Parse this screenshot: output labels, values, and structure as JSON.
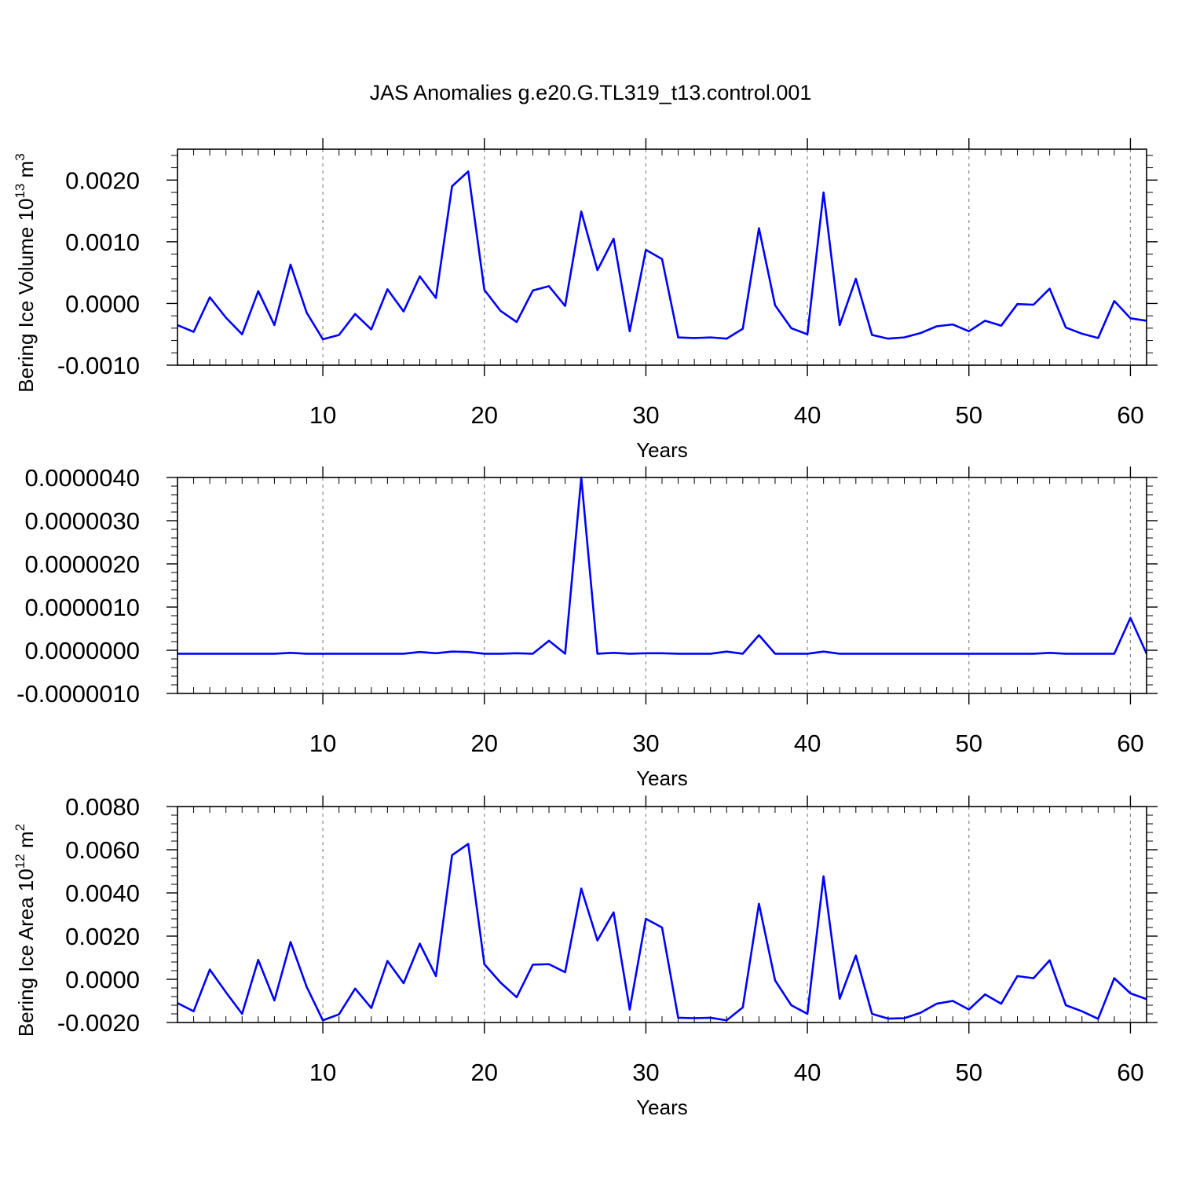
{
  "figure": {
    "title": "JAS Anomalies g.e20.G.TL319_t13.control.001",
    "line_color": "#0000ff"
  },
  "chart_data": [
    {
      "type": "line",
      "xlabel": "Years",
      "ylabel": "Bering Ice Volume 10",
      "ylabel_exp": "13",
      "ylabel_unit": " m",
      "ylabel_unit_exp": "3",
      "xlim": [
        1,
        61
      ],
      "ylim": [
        -0.001,
        0.0025
      ],
      "x_ticks": [
        10,
        20,
        30,
        40,
        50,
        60
      ],
      "x_tick_labels": [
        "10",
        "20",
        "30",
        "40",
        "50",
        "60"
      ],
      "y_ticks": [
        -0.001,
        0,
        0.001,
        0.002
      ],
      "y_tick_labels": [
        "-0.0010",
        "0.0000",
        "0.0010",
        "0.0020"
      ],
      "grid": "dashed vertical at major x ticks",
      "series": [
        {
          "x": [
            1,
            2,
            3,
            4,
            5,
            6,
            7,
            8,
            9,
            10,
            11,
            12,
            13,
            14,
            15,
            16,
            17,
            18,
            19,
            20,
            21,
            22,
            23,
            24,
            25,
            26,
            27,
            28,
            29,
            30,
            31,
            32,
            33,
            34,
            35,
            36,
            37,
            38,
            39,
            40,
            41,
            42,
            43,
            44,
            45,
            46,
            47,
            48,
            49,
            50,
            51,
            52,
            53,
            54,
            55,
            56,
            57,
            58,
            59,
            60,
            61
          ],
          "values": [
            -0.00035,
            -0.00046,
            0.0001,
            -0.00023,
            -0.0005,
            0.0002,
            -0.00035,
            0.00063,
            -0.00015,
            -0.00058,
            -0.00051,
            -0.00017,
            -0.00042,
            0.00023,
            -0.00013,
            0.00044,
            9e-05,
            0.0019,
            0.00214,
            0.00022,
            -0.00012,
            -0.0003,
            0.00021,
            0.00028,
            -4e-05,
            0.00149,
            0.00054,
            0.00105,
            -0.00045,
            0.00087,
            0.00072,
            -0.00055,
            -0.00056,
            -0.00055,
            -0.00057,
            -0.00041,
            0.00122,
            -3e-05,
            -0.0004,
            -0.0005,
            0.0018,
            -0.00035,
            0.0004,
            -0.00051,
            -0.00057,
            -0.00055,
            -0.00048,
            -0.00037,
            -0.00034,
            -0.00045,
            -0.00028,
            -0.00036,
            -1e-05,
            -2e-05,
            0.00024,
            -0.00039,
            -0.00049,
            -0.00056,
            4e-05,
            -0.00024,
            -0.00028
          ]
        }
      ]
    },
    {
      "type": "line",
      "xlabel": "Years",
      "ylabel": "",
      "xlim": [
        1,
        61
      ],
      "ylim": [
        -1e-06,
        4e-06
      ],
      "x_ticks": [
        10,
        20,
        30,
        40,
        50,
        60
      ],
      "x_tick_labels": [
        "10",
        "20",
        "30",
        "40",
        "50",
        "60"
      ],
      "y_ticks": [
        -1e-06,
        0,
        1e-06,
        2e-06,
        3e-06,
        4e-06
      ],
      "y_tick_labels": [
        "-0.0000010",
        "0.0000000",
        "0.0000010",
        "0.0000020",
        "0.0000030",
        "0.0000040"
      ],
      "grid": "dashed vertical at major x ticks",
      "series": [
        {
          "x": [
            1,
            2,
            3,
            4,
            5,
            6,
            7,
            8,
            9,
            10,
            11,
            12,
            13,
            14,
            15,
            16,
            17,
            18,
            19,
            20,
            21,
            22,
            23,
            24,
            25,
            26,
            27,
            28,
            29,
            30,
            31,
            32,
            33,
            34,
            35,
            36,
            37,
            38,
            39,
            40,
            41,
            42,
            43,
            44,
            45,
            46,
            47,
            48,
            49,
            50,
            51,
            52,
            53,
            54,
            55,
            56,
            57,
            58,
            59,
            60,
            61
          ],
          "values": [
            -8e-08,
            -8e-08,
            -8e-08,
            -8e-08,
            -8e-08,
            -8e-08,
            -8e-08,
            -6e-08,
            -8e-08,
            -8e-08,
            -8e-08,
            -8e-08,
            -8e-08,
            -8e-08,
            -8e-08,
            -4e-08,
            -7e-08,
            -3e-08,
            -4e-08,
            -8e-08,
            -8e-08,
            -7e-08,
            -8e-08,
            2.2e-07,
            -8e-08,
            4e-06,
            -8e-08,
            -6e-08,
            -8e-08,
            -7e-08,
            -7e-08,
            -8e-08,
            -8e-08,
            -8e-08,
            -3e-08,
            -8e-08,
            3.5e-07,
            -8e-08,
            -8e-08,
            -8e-08,
            -3e-08,
            -8e-08,
            -8e-08,
            -8e-08,
            -8e-08,
            -8e-08,
            -8e-08,
            -8e-08,
            -8e-08,
            -8e-08,
            -8e-08,
            -8e-08,
            -8e-08,
            -8e-08,
            -6e-08,
            -8e-08,
            -8e-08,
            -8e-08,
            -8e-08,
            7.5e-07,
            -8e-08
          ]
        }
      ]
    },
    {
      "type": "line",
      "xlabel": "Years",
      "ylabel": "Bering Ice Area 10",
      "ylabel_exp": "12",
      "ylabel_unit": " m",
      "ylabel_unit_exp": "2",
      "xlim": [
        1,
        61
      ],
      "ylim": [
        -0.002,
        0.008
      ],
      "x_ticks": [
        10,
        20,
        30,
        40,
        50,
        60
      ],
      "x_tick_labels": [
        "10",
        "20",
        "30",
        "40",
        "50",
        "60"
      ],
      "y_ticks": [
        -0.002,
        0,
        0.002,
        0.004,
        0.006,
        0.008
      ],
      "y_tick_labels": [
        "-0.0020",
        "0.0000",
        "0.0020",
        "0.0040",
        "0.0060",
        "0.0080"
      ],
      "grid": "dashed vertical at major x ticks",
      "series": [
        {
          "x": [
            1,
            2,
            3,
            4,
            5,
            6,
            7,
            8,
            9,
            10,
            11,
            12,
            13,
            14,
            15,
            16,
            17,
            18,
            19,
            20,
            21,
            22,
            23,
            24,
            25,
            26,
            27,
            28,
            29,
            30,
            31,
            32,
            33,
            34,
            35,
            36,
            37,
            38,
            39,
            40,
            41,
            42,
            43,
            44,
            45,
            46,
            47,
            48,
            49,
            50,
            51,
            52,
            53,
            54,
            55,
            56,
            57,
            58,
            59,
            60,
            61
          ],
          "values": [
            -0.0011,
            -0.00148,
            0.00045,
            -0.0006,
            -0.0016,
            0.0009,
            -0.00098,
            0.00173,
            -0.00035,
            -0.0019,
            -0.00162,
            -0.00043,
            -0.00133,
            0.00085,
            -0.00018,
            0.00165,
            0.00015,
            0.00575,
            0.00627,
            0.0007,
            -0.00015,
            -0.00083,
            0.00068,
            0.0007,
            0.00033,
            0.0042,
            0.0018,
            0.0031,
            -0.0014,
            0.0028,
            0.0024,
            -0.00178,
            -0.0018,
            -0.00178,
            -0.0019,
            -0.0013,
            0.0035,
            -5e-05,
            -0.0012,
            -0.0016,
            0.00477,
            -0.0009,
            0.0011,
            -0.0016,
            -0.00182,
            -0.0018,
            -0.00155,
            -0.00113,
            -0.001,
            -0.0014,
            -0.0007,
            -0.00113,
            0.00015,
            5e-05,
            0.00088,
            -0.0012,
            -0.00148,
            -0.00183,
            5e-05,
            -0.00065,
            -0.00092
          ]
        }
      ]
    }
  ]
}
